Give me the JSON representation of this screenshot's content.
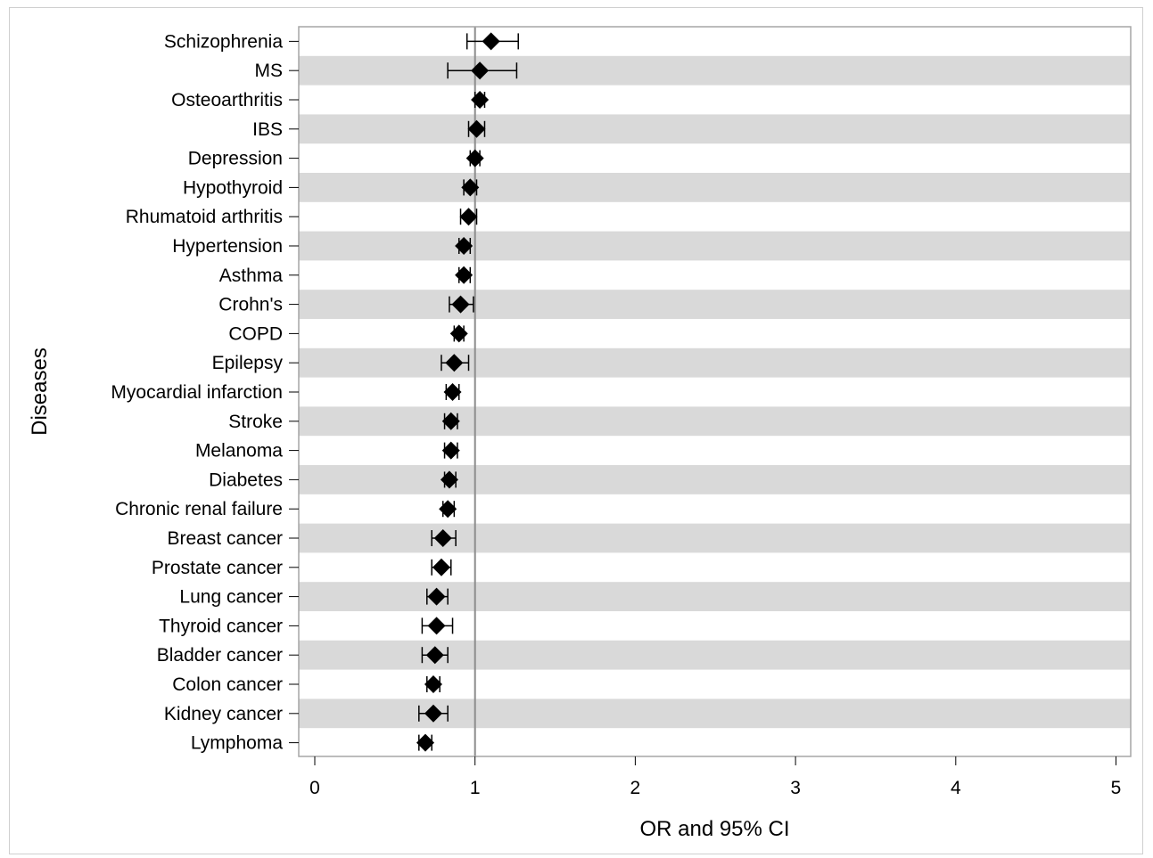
{
  "chart_data": {
    "type": "forest",
    "xlabel": "OR and 95% CI",
    "ylabel": "Diseases",
    "xlim": [
      0,
      5.1
    ],
    "xticks": [
      "0",
      "1",
      "2",
      "3",
      "4",
      "5"
    ],
    "reference_line": 1,
    "band_color": "#d9d9d9",
    "marker_color": "#000000",
    "reference_line_color": "#8c8c8c",
    "marker": "diamond",
    "items": [
      {
        "label": "Schizophrenia",
        "or": 1.1,
        "low": 0.95,
        "high": 1.27
      },
      {
        "label": "MS",
        "or": 1.03,
        "low": 0.83,
        "high": 1.26
      },
      {
        "label": "Osteoarthritis",
        "or": 1.03,
        "low": 1.0,
        "high": 1.06
      },
      {
        "label": "IBS",
        "or": 1.01,
        "low": 0.96,
        "high": 1.06
      },
      {
        "label": "Depression",
        "or": 1.0,
        "low": 0.97,
        "high": 1.03
      },
      {
        "label": "Hypothyroid",
        "or": 0.97,
        "low": 0.93,
        "high": 1.01
      },
      {
        "label": "Rhumatoid arthritis",
        "or": 0.96,
        "low": 0.91,
        "high": 1.01
      },
      {
        "label": "Hypertension",
        "or": 0.93,
        "low": 0.9,
        "high": 0.97
      },
      {
        "label": "Asthma",
        "or": 0.93,
        "low": 0.9,
        "high": 0.97
      },
      {
        "label": "Crohn's",
        "or": 0.91,
        "low": 0.84,
        "high": 0.99
      },
      {
        "label": "COPD",
        "or": 0.9,
        "low": 0.87,
        "high": 0.93
      },
      {
        "label": "Epilepsy",
        "or": 0.87,
        "low": 0.79,
        "high": 0.96
      },
      {
        "label": "Myocardial infarction",
        "or": 0.86,
        "low": 0.82,
        "high": 0.9
      },
      {
        "label": "Stroke",
        "or": 0.85,
        "low": 0.81,
        "high": 0.89
      },
      {
        "label": "Melanoma",
        "or": 0.85,
        "low": 0.81,
        "high": 0.89
      },
      {
        "label": "Diabetes",
        "or": 0.84,
        "low": 0.81,
        "high": 0.88
      },
      {
        "label": "Chronic renal failure",
        "or": 0.83,
        "low": 0.8,
        "high": 0.87
      },
      {
        "label": "Breast cancer",
        "or": 0.8,
        "low": 0.73,
        "high": 0.88
      },
      {
        "label": "Prostate cancer",
        "or": 0.79,
        "low": 0.73,
        "high": 0.85
      },
      {
        "label": "Lung cancer",
        "or": 0.76,
        "low": 0.7,
        "high": 0.83
      },
      {
        "label": "Thyroid cancer",
        "or": 0.76,
        "low": 0.67,
        "high": 0.86
      },
      {
        "label": "Bladder cancer",
        "or": 0.75,
        "low": 0.67,
        "high": 0.83
      },
      {
        "label": "Colon cancer",
        "or": 0.74,
        "low": 0.7,
        "high": 0.78
      },
      {
        "label": "Kidney cancer",
        "or": 0.74,
        "low": 0.65,
        "high": 0.83
      },
      {
        "label": "Lymphoma",
        "or": 0.69,
        "low": 0.65,
        "high": 0.73
      }
    ]
  }
}
